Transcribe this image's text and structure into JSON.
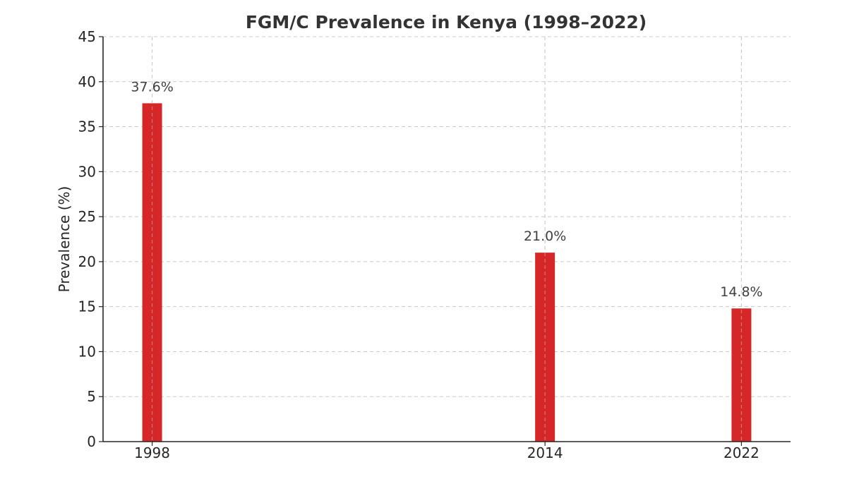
{
  "chart_data": {
    "type": "bar",
    "title": "FGM/C Prevalence in Kenya (1998–2022)",
    "xlabel": "",
    "ylabel": "Prevalence (%)",
    "x": [
      1998,
      2014,
      2022
    ],
    "values": [
      37.6,
      21.0,
      14.8
    ],
    "data_labels": [
      "37.6%",
      "21.0%",
      "14.8%"
    ],
    "x_tick_labels": [
      "1998",
      "2014",
      "2022"
    ],
    "y_ticks": [
      0,
      5,
      10,
      15,
      20,
      25,
      30,
      35,
      40,
      45
    ],
    "ylim": [
      0,
      45
    ],
    "xlim": [
      1996,
      2024
    ],
    "grid": true,
    "bar_color": "#d62728",
    "legend": null
  }
}
